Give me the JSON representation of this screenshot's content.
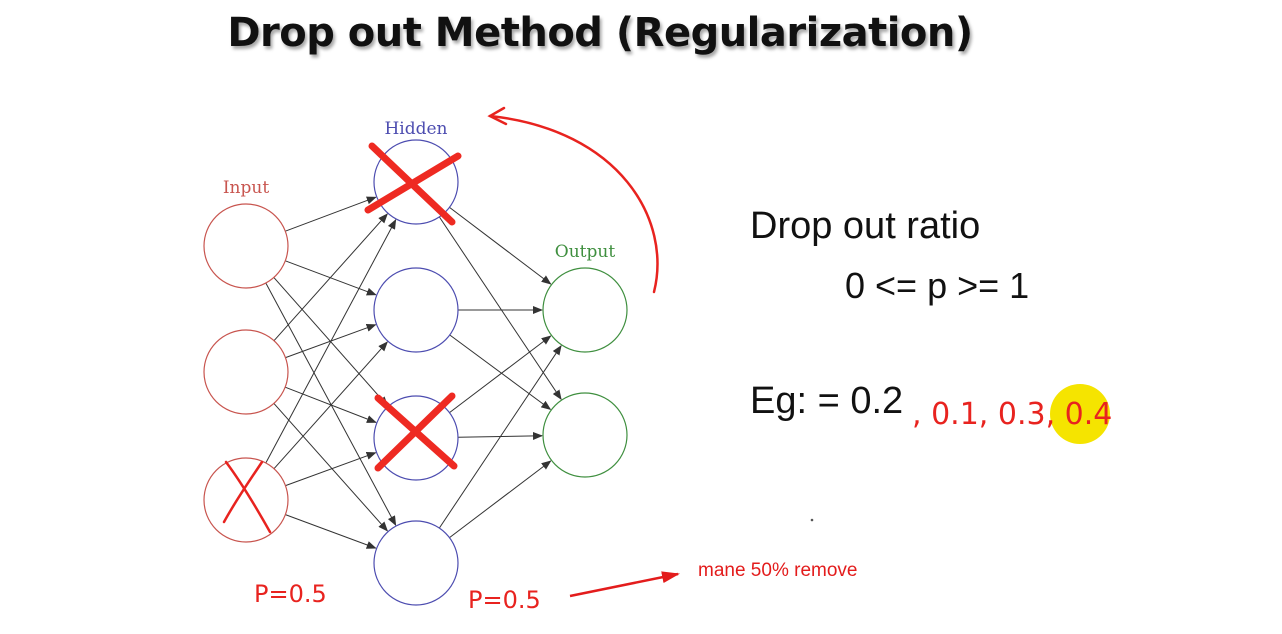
{
  "title": "Drop out Method (Regularization)",
  "diagram": {
    "layers": [
      {
        "label": "Input",
        "color": "#c8554f",
        "nodes": 3
      },
      {
        "label": "Hidden",
        "color": "#4d4db0",
        "nodes": 4
      },
      {
        "label": "Output",
        "color": "#3f8f3f",
        "nodes": 2
      }
    ],
    "dropped_nodes": [
      "hidden-1",
      "hidden-3",
      "input-3"
    ],
    "edge_color": "#333333"
  },
  "ratio": {
    "heading": "Drop out ratio",
    "formula": "0 <= p >= 1",
    "example": "Eg: = 0.2"
  },
  "annotations": {
    "example_values": ", 0.1, 0.3, 0.4",
    "p_input": "P=0.5",
    "p_hidden": "P=0.5",
    "note": "mane 50% remove",
    "ink_color": "#e8231f",
    "highlight_color": "#f5e400"
  }
}
